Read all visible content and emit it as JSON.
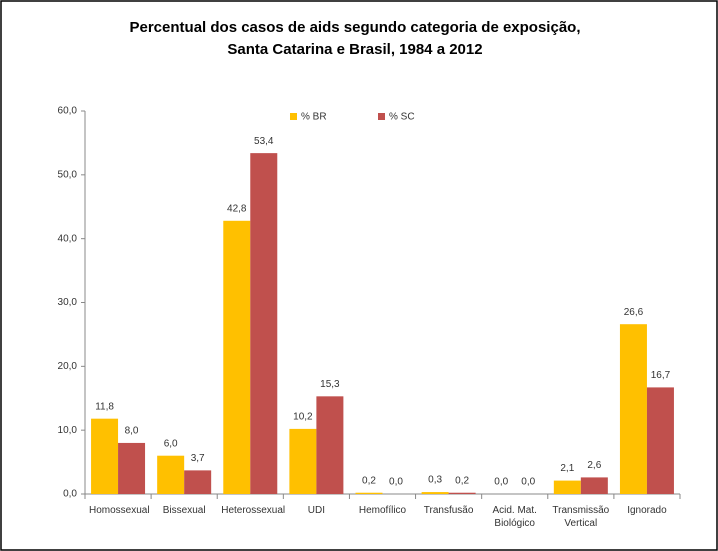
{
  "chart_data": {
    "type": "bar",
    "title": [
      "Percentual dos casos de aids segundo categoria de exposição,",
      "Santa Catarina e Brasil, 1984 a 2012"
    ],
    "categories": [
      "Homossexual",
      "Bissexual",
      "Heterossexual",
      "UDI",
      "Hemofílico",
      "Transfusão",
      "Acid. Mat. Biológico",
      "Transmissão Vertical",
      "Ignorado"
    ],
    "series": [
      {
        "name": "% BR",
        "color": "#FFC000",
        "values": [
          11.8,
          6.0,
          42.8,
          10.2,
          0.2,
          0.3,
          0.0,
          2.1,
          26.6
        ],
        "value_labels": [
          "11,8",
          "6,0",
          "42,8",
          "10,2",
          "0,2",
          "0,3",
          "0,0",
          "2,1",
          "26,6"
        ]
      },
      {
        "name": "% SC",
        "color": "#C0504D",
        "values": [
          8.0,
          3.7,
          53.4,
          15.3,
          0.0,
          0.2,
          0.0,
          2.6,
          16.7
        ],
        "value_labels": [
          "8,0",
          "3,7",
          "53,4",
          "15,3",
          "0,0",
          "0,2",
          "0,0",
          "2,6",
          "16,7"
        ]
      }
    ],
    "ylim": [
      0,
      60
    ],
    "yticks": [
      {
        "value": 0,
        "label": "0,0"
      },
      {
        "value": 10,
        "label": "10,0"
      },
      {
        "value": 20,
        "label": "20,0"
      },
      {
        "value": 30,
        "label": "30,0"
      },
      {
        "value": 40,
        "label": "40,0"
      },
      {
        "value": 50,
        "label": "50,0"
      },
      {
        "value": 60,
        "label": "60,0"
      }
    ],
    "grid": false
  }
}
